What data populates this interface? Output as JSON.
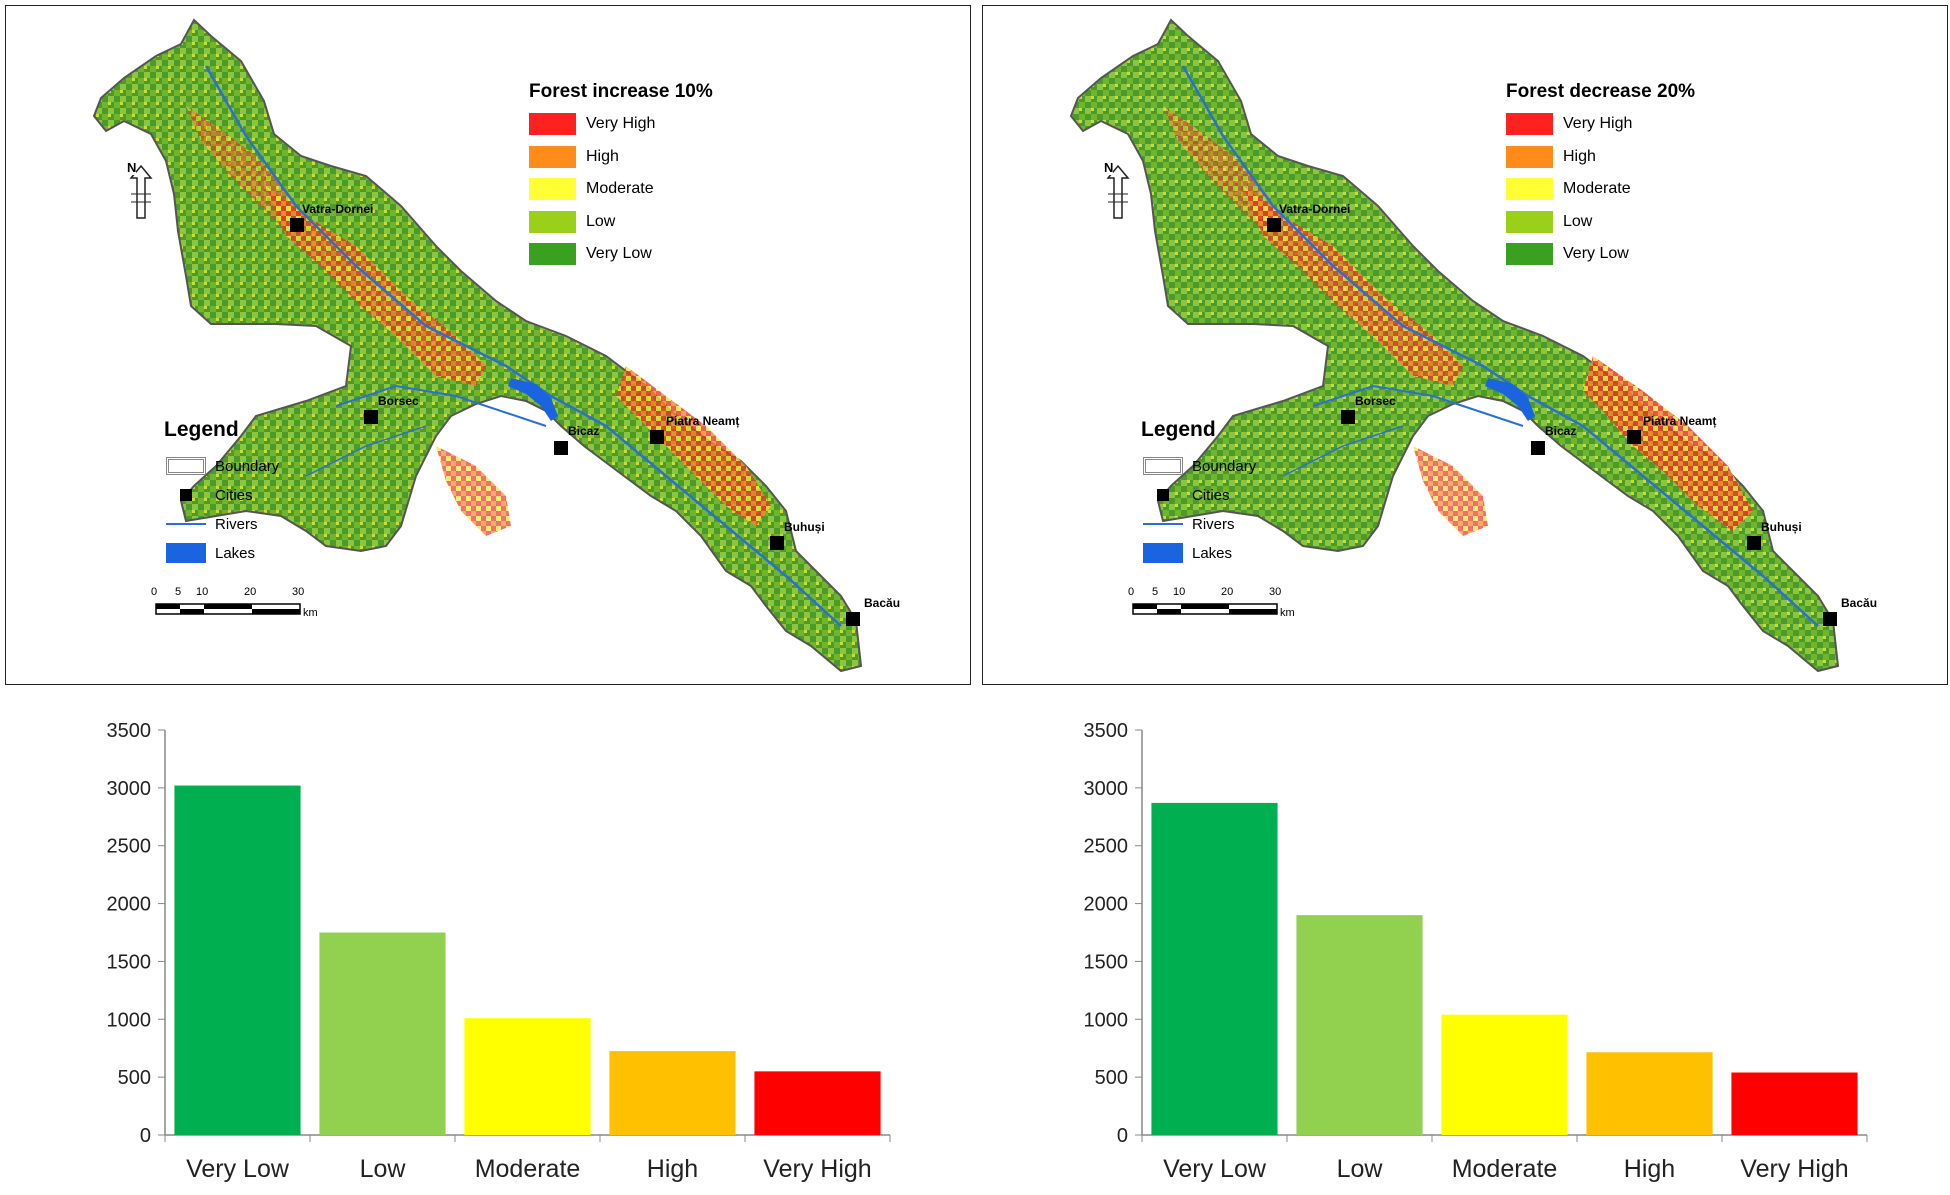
{
  "map_left": {
    "title": "Forest increase 10%",
    "classes": [
      {
        "label": "Very High",
        "color": "#ff2020"
      },
      {
        "label": "High",
        "color": "#ff8c1a"
      },
      {
        "label": "Moderate",
        "color": "#ffff33"
      },
      {
        "label": "Low",
        "color": "#99d11a"
      },
      {
        "label": "Very Low",
        "color": "#39a020"
      }
    ]
  },
  "map_right": {
    "title": "Forest decrease 20%",
    "classes": [
      {
        "label": "Very High",
        "color": "#ff2020"
      },
      {
        "label": "High",
        "color": "#ff8c1a"
      },
      {
        "label": "Moderate",
        "color": "#ffff33"
      },
      {
        "label": "Low",
        "color": "#99d11a"
      },
      {
        "label": "Very Low",
        "color": "#39a020"
      }
    ]
  },
  "legend": {
    "title": "Legend",
    "items": [
      {
        "label": "Boundary",
        "icon": "boundary-icon"
      },
      {
        "label": "Cities",
        "icon": "city-square-icon"
      },
      {
        "label": "Rivers",
        "icon": "river-line-icon",
        "color": "#2a6fd6"
      },
      {
        "label": "Lakes",
        "icon": "lake-icon",
        "color": "#1a64e0"
      }
    ]
  },
  "scalebar": {
    "ticks": [
      "0",
      "5",
      "10",
      "20",
      "30"
    ],
    "unit": "km"
  },
  "north_arrow": {
    "label": "N"
  },
  "cities": [
    "Vatra-Dornei",
    "Borsec",
    "Bicaz",
    "Piatra Neamț",
    "Buhuși",
    "Bacău"
  ],
  "chart_data": [
    {
      "type": "bar",
      "categories": [
        "Very Low",
        "Low",
        "Moderate",
        "High",
        "Very High"
      ],
      "values": [
        3020,
        1750,
        1010,
        725,
        550
      ],
      "colors": [
        "#00b050",
        "#92d050",
        "#ffff00",
        "#ffc000",
        "#ff0000"
      ],
      "ylim": [
        0,
        3500
      ],
      "yticks": [
        "0",
        "500",
        "1000",
        "1500",
        "2000",
        "2500",
        "3000",
        "3500"
      ],
      "title": "",
      "xlabel": "",
      "ylabel": ""
    },
    {
      "type": "bar",
      "categories": [
        "Very Low",
        "Low",
        "Moderate",
        "High",
        "Very High"
      ],
      "values": [
        2870,
        1900,
        1040,
        715,
        540
      ],
      "colors": [
        "#00b050",
        "#92d050",
        "#ffff00",
        "#ffc000",
        "#ff0000"
      ],
      "ylim": [
        0,
        3500
      ],
      "yticks": [
        "0",
        "500",
        "1000",
        "1500",
        "2000",
        "2500",
        "3000",
        "3500"
      ],
      "title": "",
      "xlabel": "",
      "ylabel": ""
    }
  ]
}
